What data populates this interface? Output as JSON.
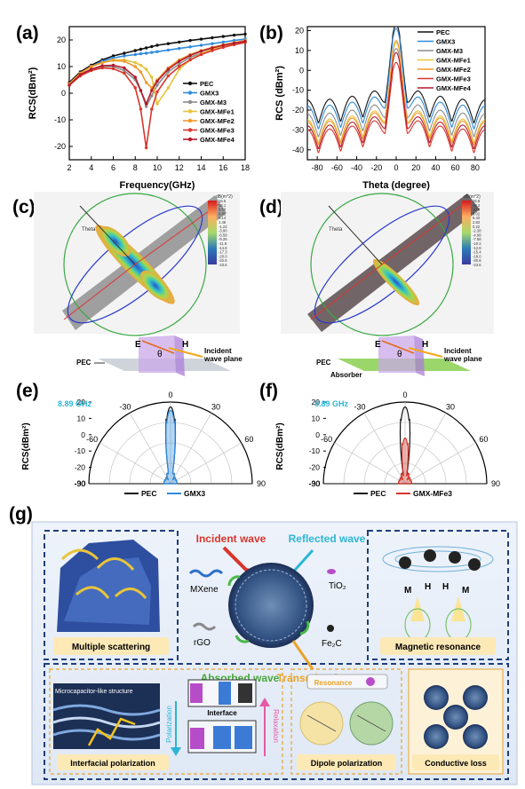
{
  "panels": {
    "a": "(a)",
    "b": "(b)",
    "c": "(c)",
    "d": "(d)",
    "e": "(e)",
    "f": "(f)",
    "g": "(g)"
  },
  "colors": {
    "PEC": "#111111",
    "GMX3": "#2f8bdc",
    "GMX-M3": "#8c8c8c",
    "GMX-MFe1": "#e7c23a",
    "GMX-MFe2": "#f19a2b",
    "GMX-MFe3": "#d8362d",
    "GMX-MFe4": "#b5192a",
    "accent_cyan": "#2cb6d6"
  },
  "chart_data": [
    {
      "panel": "a",
      "type": "line",
      "xlabel": "Frequency(GHz)",
      "ylabel": "RCS(dBm²)",
      "xlim": [
        2,
        18
      ],
      "ylim": [
        -25,
        25
      ],
      "xticks": [
        2,
        4,
        6,
        8,
        10,
        12,
        14,
        16,
        18
      ],
      "yticks": [
        -20,
        -10,
        0,
        10,
        20
      ],
      "legend_position": "bottom-right",
      "x": [
        2,
        3,
        4,
        5,
        6,
        7,
        8,
        8.5,
        9,
        9.5,
        10,
        11,
        12,
        13,
        14,
        15,
        16,
        17,
        18
      ],
      "series": [
        {
          "name": "PEC",
          "values": [
            4,
            8,
            10.5,
            12.5,
            14,
            15,
            16,
            16.5,
            17,
            17.5,
            18,
            18.6,
            19.2,
            19.8,
            20.3,
            20.8,
            21.3,
            21.8,
            22.2
          ]
        },
        {
          "name": "GMX3",
          "values": [
            3.5,
            7.5,
            10,
            12,
            13.2,
            14,
            14.5,
            14.8,
            15,
            15.3,
            15.6,
            16.2,
            16.8,
            17.4,
            18,
            18.6,
            19.2,
            19.8,
            20.3
          ]
        },
        {
          "name": "GMX-M3",
          "values": [
            3,
            7,
            9,
            10,
            10,
            8.5,
            5,
            1,
            -5,
            -1,
            3,
            8,
            11,
            13.5,
            15,
            16.5,
            17.5,
            18.5,
            19.3
          ]
        },
        {
          "name": "GMX-MFe1",
          "values": [
            3.5,
            7.5,
            10,
            11.5,
            12.5,
            12.5,
            11.5,
            10.5,
            9,
            6,
            -4,
            2,
            9,
            12.5,
            14.8,
            16.5,
            17.8,
            18.8,
            19.8
          ]
        },
        {
          "name": "GMX-MFe2",
          "values": [
            3.5,
            7.5,
            10,
            11.5,
            12.3,
            12,
            10,
            8,
            4,
            2,
            5,
            9.5,
            12.5,
            14.5,
            16,
            17.2,
            18.2,
            19,
            19.8
          ]
        },
        {
          "name": "GMX-MFe3",
          "values": [
            3,
            6.5,
            8.5,
            9.5,
            9.2,
            7.5,
            2,
            -6,
            -20.5,
            -6,
            0.5,
            6.5,
            10,
            12.5,
            14.5,
            16,
            17.2,
            18.2,
            19
          ]
        },
        {
          "name": "GMX-MFe4",
          "values": [
            3,
            7,
            9,
            10.3,
            10.5,
            9.5,
            6,
            1,
            -4,
            1,
            4.5,
            9,
            12,
            14.2,
            15.8,
            17,
            18,
            18.8,
            19.5
          ]
        }
      ]
    },
    {
      "panel": "b",
      "type": "line",
      "xlabel": "Theta (degree)",
      "ylabel": "RCS (dBm²)",
      "xlim": [
        -90,
        90
      ],
      "ylim": [
        -45,
        22
      ],
      "xticks": [
        -80,
        -60,
        -40,
        -20,
        0,
        20,
        40,
        60,
        80
      ],
      "yticks": [
        -40,
        -30,
        -20,
        -10,
        0,
        10,
        20
      ],
      "legend_position": "top-right",
      "series": [
        {
          "name": "PEC",
          "peak": 17,
          "floor": -15
        },
        {
          "name": "GMX3",
          "peak": 15,
          "floor": -18
        },
        {
          "name": "GMX-M3",
          "peak": 5,
          "floor": -22
        },
        {
          "name": "GMX-MFe1",
          "peak": 8,
          "floor": -25
        },
        {
          "name": "GMX-MFe2",
          "peak": 9,
          "floor": -26
        },
        {
          "name": "GMX-MFe3",
          "peak": -2,
          "floor": -30
        },
        {
          "name": "GMX-MFe4",
          "peak": 3,
          "floor": -28
        }
      ]
    },
    {
      "panel": "e",
      "type": "polar",
      "frequency_label": "8.89 GHz",
      "ylabel": "RCS(dBm²)",
      "rlim": [
        -30,
        20
      ],
      "rticks": [
        20,
        10,
        0,
        -10,
        -20,
        -30
      ],
      "angle_labels": [
        "0",
        "30",
        "-30",
        "60",
        "-60",
        "90",
        "-90"
      ],
      "series": [
        {
          "name": "PEC",
          "peak": 17
        },
        {
          "name": "GMX3",
          "peak": 15
        }
      ]
    },
    {
      "panel": "f",
      "type": "polar",
      "frequency_label": "8.89 GHz",
      "ylabel": "RCS(dBm²)",
      "rlim": [
        -30,
        20
      ],
      "rticks": [
        20,
        10,
        0,
        -10,
        -20,
        -30
      ],
      "angle_labels": [
        "0",
        "30",
        "-30",
        "60",
        "-60",
        "90",
        "-90"
      ],
      "series": [
        {
          "name": "PEC",
          "peak": 17
        },
        {
          "name": "GMX-MFe3",
          "peak": -2
        }
      ]
    }
  ],
  "sim_c": {
    "theta": "Theta",
    "colorbar_title": "dB(m^2)",
    "colorbar_ticks": [
      "15.5",
      "13.1",
      "9.50",
      "6.82",
      "4.14",
      "1.46",
      "-1.22",
      "-3.90",
      "-6.58",
      "-9.26",
      "-11.9",
      "-14.6",
      "-17.3",
      "-20.0",
      "-22.6",
      "-23.6"
    ],
    "E": "E",
    "H": "H",
    "theta_sym": "θ",
    "incident": "Incident\nwave plane",
    "incident1": "Incident",
    "incident2": "wave plane",
    "pec": "PEC"
  },
  "sim_d": {
    "theta": "Theta",
    "colorbar_title": "dB(m^2)",
    "colorbar_ticks": [
      "15.8",
      "13.2",
      "10.6",
      "8.02",
      "5.42",
      "2.82",
      "0.22",
      "-2.38",
      "-4.98",
      "-7.58",
      "-10.2",
      "-12.8",
      "-15.4",
      "-18.0",
      "-20.6",
      "-23.6"
    ],
    "E": "E",
    "H": "H",
    "theta_sym": "θ",
    "incident1": "Incident",
    "incident2": "wave plane",
    "pec": "PEC",
    "absorber": "Absorber"
  },
  "schematic_g": {
    "incident_wave": "Incident wave",
    "reflected_wave": "Reflected wave",
    "absorbed_wave": "Absorbed wave",
    "transmitted_wave": "Transmitted wave",
    "mxene": "MXene",
    "rgo": "rGO",
    "tio2": "TiO₂",
    "fe2c": "Fe₂C",
    "multiple_scattering": "Multiple scattering",
    "magnetic_resonance": "Magnetic resonance",
    "microcapacitor": "Microcapacitor-like structure",
    "interface": "Interface",
    "polarization": "Polarization",
    "relaxation": "Relaxation",
    "interfacial_polarization": "Interfacial polarization",
    "resonance": "Resonance",
    "dipole_polarization": "Dipole polarization",
    "conductive_loss": "Conductive loss",
    "M": "M",
    "H": "H"
  }
}
